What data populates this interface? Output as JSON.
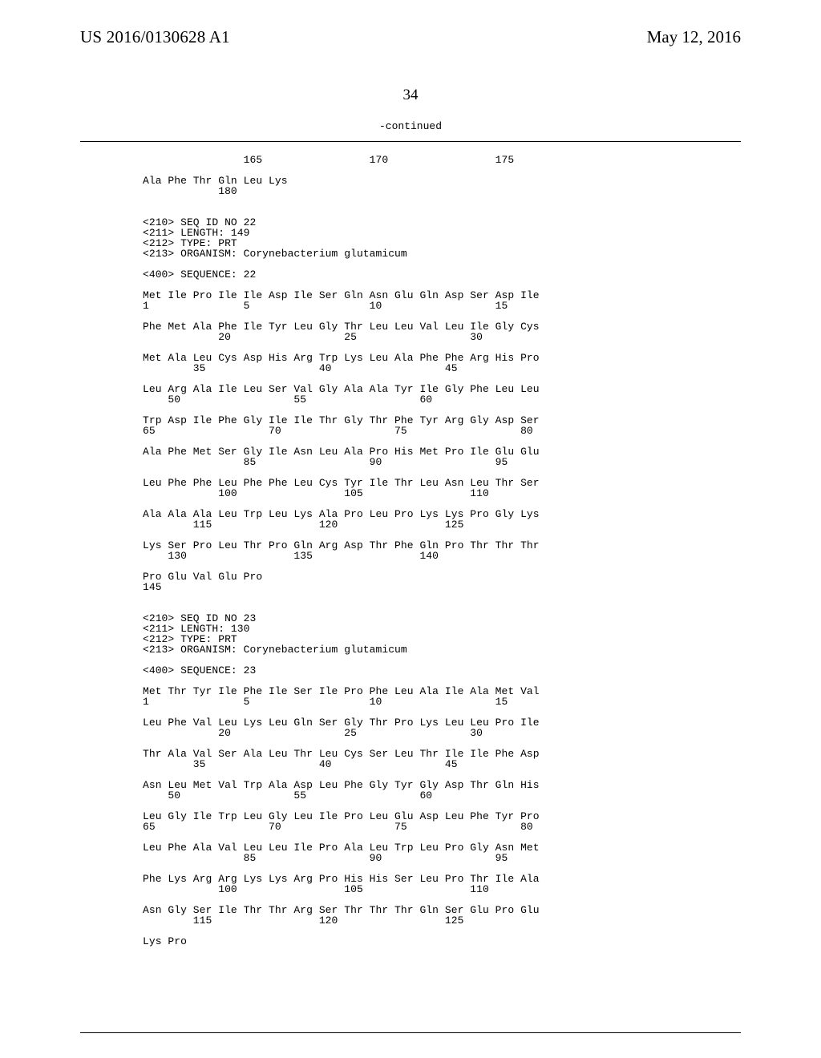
{
  "header": {
    "pubNumber": "US 2016/0130628 A1",
    "pubDate": "May 12, 2016"
  },
  "pageNumber": "34",
  "continued": "-continued",
  "seqText": "                165                 170                 175\n\nAla Phe Thr Gln Leu Lys\n            180\n\n\n<210> SEQ ID NO 22\n<211> LENGTH: 149\n<212> TYPE: PRT\n<213> ORGANISM: Corynebacterium glutamicum\n\n<400> SEQUENCE: 22\n\nMet Ile Pro Ile Ile Asp Ile Ser Gln Asn Glu Gln Asp Ser Asp Ile\n1               5                   10                  15\n\nPhe Met Ala Phe Ile Tyr Leu Gly Thr Leu Leu Val Leu Ile Gly Cys\n            20                  25                  30\n\nMet Ala Leu Cys Asp His Arg Trp Lys Leu Ala Phe Phe Arg His Pro\n        35                  40                  45\n\nLeu Arg Ala Ile Leu Ser Val Gly Ala Ala Tyr Ile Gly Phe Leu Leu\n    50                  55                  60\n\nTrp Asp Ile Phe Gly Ile Ile Thr Gly Thr Phe Tyr Arg Gly Asp Ser\n65                  70                  75                  80\n\nAla Phe Met Ser Gly Ile Asn Leu Ala Pro His Met Pro Ile Glu Glu\n                85                  90                  95\n\nLeu Phe Phe Leu Phe Phe Leu Cys Tyr Ile Thr Leu Asn Leu Thr Ser\n            100                 105                 110\n\nAla Ala Ala Leu Trp Leu Lys Ala Pro Leu Pro Lys Lys Pro Gly Lys\n        115                 120                 125\n\nLys Ser Pro Leu Thr Pro Gln Arg Asp Thr Phe Gln Pro Thr Thr Thr\n    130                 135                 140\n\nPro Glu Val Glu Pro\n145\n\n\n<210> SEQ ID NO 23\n<211> LENGTH: 130\n<212> TYPE: PRT\n<213> ORGANISM: Corynebacterium glutamicum\n\n<400> SEQUENCE: 23\n\nMet Thr Tyr Ile Phe Ile Ser Ile Pro Phe Leu Ala Ile Ala Met Val\n1               5                   10                  15\n\nLeu Phe Val Leu Lys Leu Gln Ser Gly Thr Pro Lys Leu Leu Pro Ile\n            20                  25                  30\n\nThr Ala Val Ser Ala Leu Thr Leu Cys Ser Leu Thr Ile Ile Phe Asp\n        35                  40                  45\n\nAsn Leu Met Val Trp Ala Asp Leu Phe Gly Tyr Gly Asp Thr Gln His\n    50                  55                  60\n\nLeu Gly Ile Trp Leu Gly Leu Ile Pro Leu Glu Asp Leu Phe Tyr Pro\n65                  70                  75                  80\n\nLeu Phe Ala Val Leu Leu Ile Pro Ala Leu Trp Leu Pro Gly Asn Met\n                85                  90                  95\n\nPhe Lys Arg Arg Lys Lys Arg Pro His His Ser Leu Pro Thr Ile Ala\n            100                 105                 110\n\nAsn Gly Ser Ile Thr Thr Arg Ser Thr Thr Thr Gln Ser Glu Pro Glu\n        115                 120                 125\n\nLys Pro"
}
